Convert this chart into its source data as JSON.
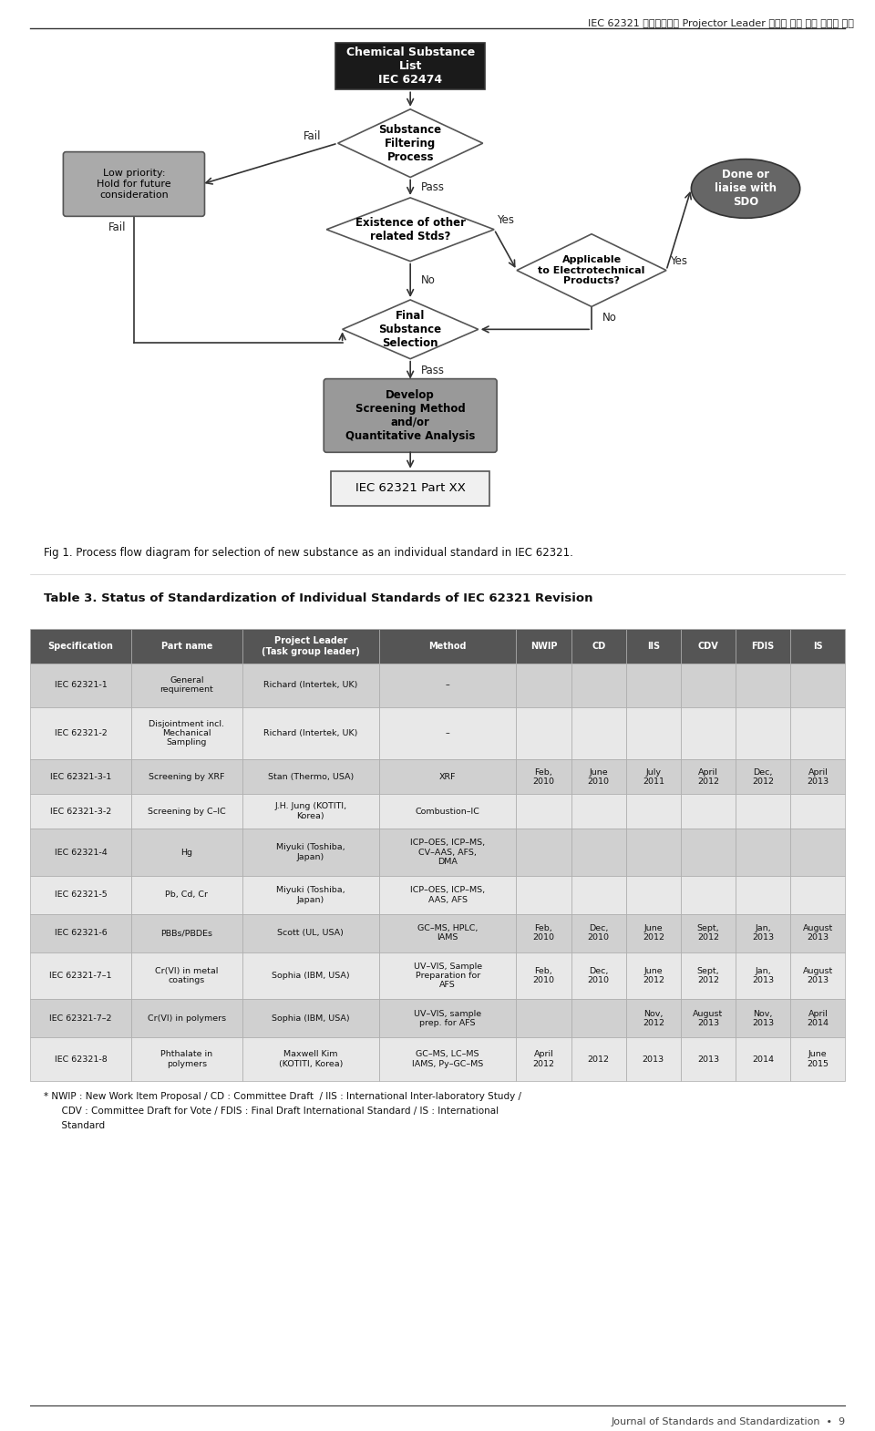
{
  "page_title": "IEC 62321 국제표준화의 Projector Leader 수입에 의한 국가 경쟁력 강화",
  "fig_caption": "Fig 1. Process flow diagram for selection of new substance as an individual standard in IEC 62321.",
  "table_caption": "Table 3. Status of Standardization of Individual Standards of IEC 62321 Revision",
  "footnote1": "* NWIP : New Work Item Proposal / CD : Committee Draft  / IIS : International Inter-laboratory Study /",
  "footnote2": "      CDV : Committee Draft for Vote / FDIS : Final Draft International Standard / IS : International",
  "footnote3": "      Standard",
  "footer": "Journal of Standards and Standardization  •  9",
  "bg_color": "#ffffff",
  "table_headers": [
    "Specification",
    "Part name",
    "Project Leader\n(Task group leader)",
    "Method",
    "NWIP",
    "CD",
    "IIS",
    "CDV",
    "FDIS",
    "IS"
  ],
  "table_header_bg": "#555555",
  "table_header_fg": "#ffffff",
  "table_row_bg_odd": "#d0d0d0",
  "table_row_bg_even": "#e8e8e8",
  "table_rows": [
    [
      "IEC 62321-1",
      "General\nrequirement",
      "Richard (Intertek, UK)",
      "–",
      "",
      "",
      "",
      "",
      "",
      ""
    ],
    [
      "IEC 62321-2",
      "Disjointment incl.\nMechanical\nSampling",
      "Richard (Intertek, UK)",
      "–",
      "",
      "",
      "",
      "",
      "",
      ""
    ],
    [
      "IEC 62321-3-1",
      "Screening by XRF",
      "Stan (Thermo, USA)",
      "XRF",
      "Feb,\n2010",
      "June\n2010",
      "July\n2011",
      "April\n2012",
      "Dec,\n2012",
      "April\n2013"
    ],
    [
      "IEC 62321-3-2",
      "Screening by C–IC",
      "J.H. Jung (KOTITI,\nKorea)",
      "Combustion–IC",
      "",
      "",
      "",
      "",
      "",
      ""
    ],
    [
      "IEC 62321-4",
      "Hg",
      "Miyuki (Toshiba,\nJapan)",
      "ICP–OES, ICP–MS,\nCV–AAS, AFS,\nDMA",
      "",
      "",
      "",
      "",
      "",
      ""
    ],
    [
      "IEC 62321-5",
      "Pb, Cd, Cr",
      "Miyuki (Toshiba,\nJapan)",
      "ICP–OES, ICP–MS,\nAAS, AFS",
      "",
      "",
      "",
      "",
      "",
      ""
    ],
    [
      "IEC 62321-6",
      "PBBs/PBDEs",
      "Scott (UL, USA)",
      "GC–MS, HPLC,\nIAMS",
      "Feb,\n2010",
      "Dec,\n2010",
      "June\n2012",
      "Sept,\n2012",
      "Jan,\n2013",
      "August\n2013"
    ],
    [
      "IEC 62321-7–1",
      "Cr(VI) in metal\ncoatings",
      "Sophia (IBM, USA)",
      "UV–VIS, Sample\nPreparation for\nAFS",
      "Feb,\n2010",
      "Dec,\n2010",
      "June\n2012",
      "Sept,\n2012",
      "Jan,\n2013",
      "August\n2013"
    ],
    [
      "IEC 62321-7–2",
      "Cr(VI) in polymers",
      "Sophia (IBM, USA)",
      "UV–VIS, sample\nprep. for AFS",
      "",
      "",
      "Nov,\n2012",
      "August\n2013",
      "Nov,\n2013",
      "April\n2014"
    ],
    [
      "IEC 62321-8",
      "Phthalate in\npolymers",
      "Maxwell Kim\n(KOTITI, Korea)",
      "GC–MS, LC–MS\nIAMS, Py–GC–MS",
      "April\n2012",
      "2012",
      "2013",
      "2013",
      "2014",
      "June\n2015"
    ]
  ]
}
